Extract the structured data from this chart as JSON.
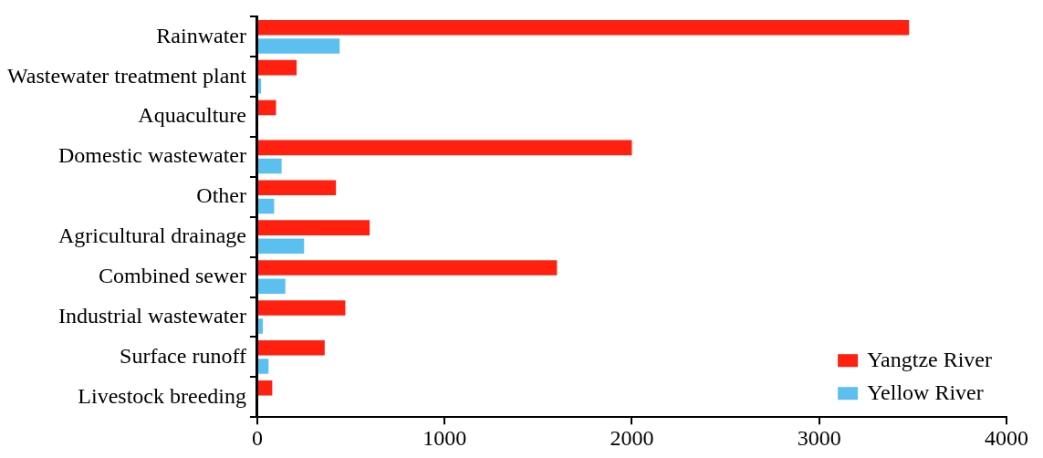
{
  "chart_data": {
    "type": "bar",
    "orientation": "horizontal",
    "categories": [
      "Rainwater",
      "Wastewater treatment plant",
      "Aquaculture",
      "Domestic wastewater",
      "Other",
      "Agricultural drainage",
      "Combined sewer",
      "Industrial wastewater",
      "Surface runoff",
      "Livestock breeding"
    ],
    "series": [
      {
        "name": "Yangtze River",
        "color": "#ff2010",
        "values": [
          3480,
          210,
          100,
          2000,
          420,
          600,
          1600,
          470,
          360,
          80
        ]
      },
      {
        "name": "Yellow River",
        "color": "#5bc0f0",
        "values": [
          440,
          20,
          0,
          130,
          90,
          250,
          150,
          30,
          60,
          0
        ]
      }
    ],
    "xlim": [
      0,
      4000
    ],
    "xticks": [
      0,
      1000,
      2000,
      3000,
      4000
    ],
    "grid": false,
    "legend": "bottom right"
  }
}
